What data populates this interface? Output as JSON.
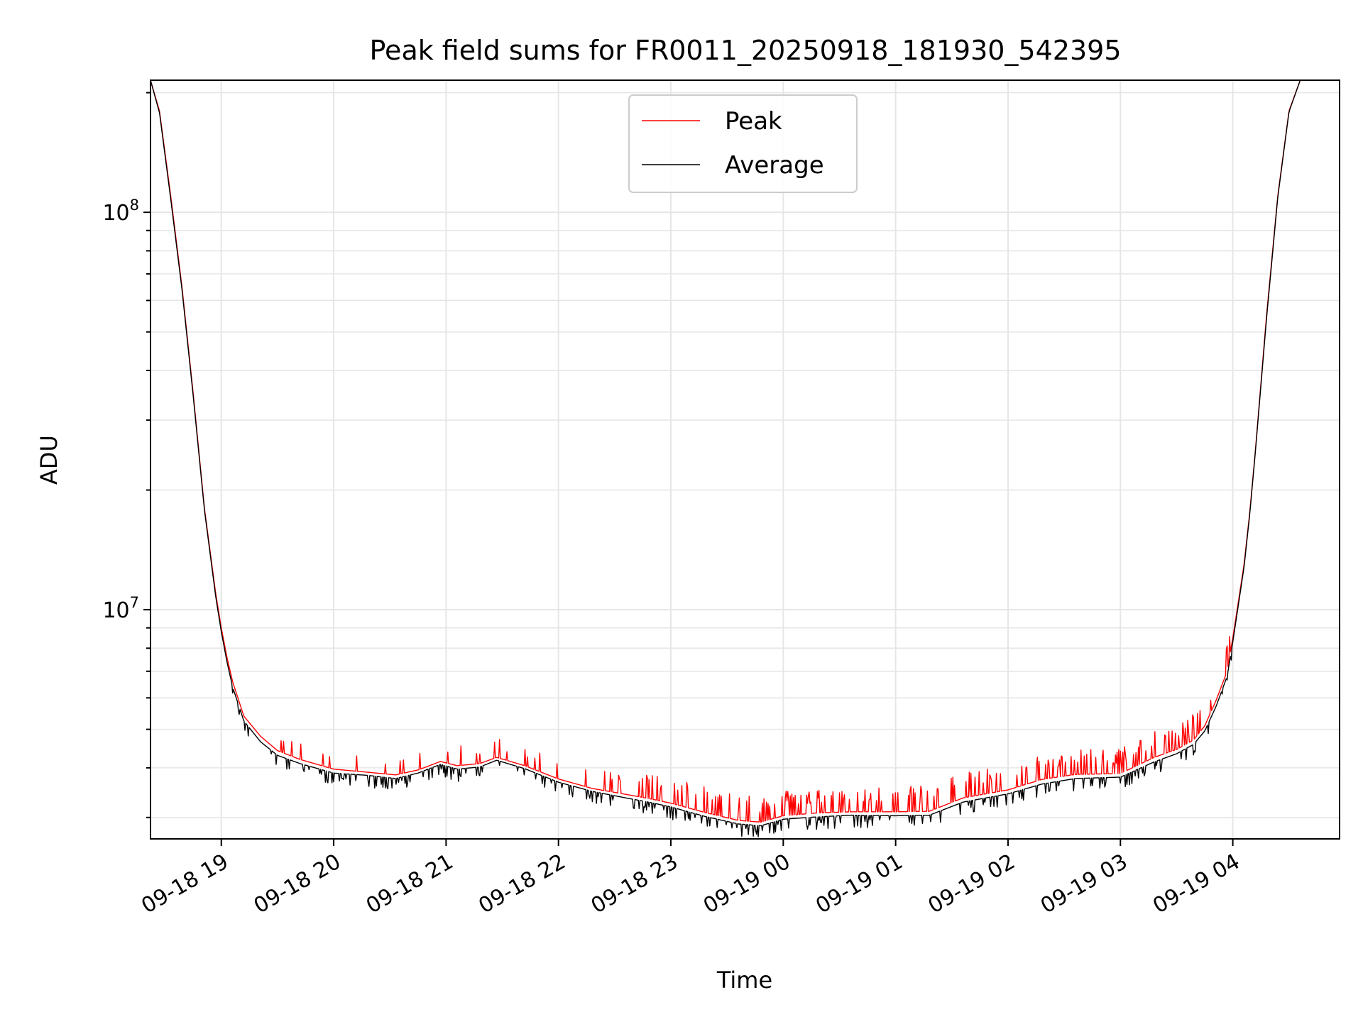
{
  "chart_data": {
    "type": "line",
    "title": "Peak field sums for FR0011_20250918_181930_542395",
    "xlabel": "Time",
    "ylabel": "ADU",
    "yscale": "log",
    "ylim": [
      2650000,
      215000000
    ],
    "xlim_hours": [
      18.37,
      28.95
    ],
    "x_tick_labels": [
      "09-18 19",
      "09-18 20",
      "09-18 21",
      "09-18 22",
      "09-18 23",
      "09-19 00",
      "09-19 01",
      "09-19 02",
      "09-19 03",
      "09-19 04"
    ],
    "x_tick_hours": [
      19,
      20,
      21,
      22,
      23,
      24,
      25,
      26,
      27,
      28
    ],
    "y_major_ticks": [
      {
        "value": 10000000,
        "base": "10",
        "exp": "7"
      },
      {
        "value": 100000000,
        "base": "10",
        "exp": "8"
      }
    ],
    "legend": {
      "placement": "upper-center",
      "entries": [
        "Peak",
        "Average"
      ]
    },
    "colors": {
      "peak": "#ff0000",
      "average": "#000000"
    },
    "series": [
      {
        "name": "Peak",
        "color": "#ff0000",
        "x_hours": [
          18.37,
          18.45,
          18.55,
          18.65,
          18.75,
          18.85,
          18.95,
          19.0,
          19.05,
          19.1,
          19.2,
          19.35,
          19.5,
          19.7,
          20.0,
          20.3,
          20.55,
          20.75,
          20.95,
          21.1,
          21.3,
          21.45,
          21.7,
          22.0,
          22.3,
          22.6,
          22.8,
          23.0,
          23.3,
          23.6,
          23.8,
          24.0,
          24.3,
          24.6,
          25.0,
          25.3,
          25.6,
          26.0,
          26.3,
          26.6,
          27.0,
          27.3,
          27.5,
          27.65,
          27.75,
          27.85,
          27.95,
          28.0,
          28.05,
          28.1,
          28.15,
          28.2,
          28.3,
          28.4,
          28.5,
          28.6
        ],
        "values": [
          215000000,
          180000000,
          110000000,
          65000000,
          35000000,
          18000000,
          11000000,
          9000000,
          7600000,
          6600000,
          5400000,
          4800000,
          4420000,
          4200000,
          3970000,
          3900000,
          3840000,
          3950000,
          4150000,
          4050000,
          4100000,
          4250000,
          4050000,
          3750000,
          3550000,
          3430000,
          3350000,
          3260000,
          3090000,
          2950000,
          2920000,
          3030000,
          3080000,
          3100000,
          3100000,
          3110000,
          3360000,
          3520000,
          3740000,
          3850000,
          3870000,
          4250000,
          4450000,
          4700000,
          5100000,
          5900000,
          7000000,
          8500000,
          10500000,
          13000000,
          17500000,
          25000000,
          55000000,
          110000000,
          180000000,
          215000000
        ]
      },
      {
        "name": "Average",
        "color": "#000000",
        "x_hours": [
          18.37,
          18.45,
          18.55,
          18.65,
          18.75,
          18.85,
          18.95,
          19.0,
          19.05,
          19.1,
          19.2,
          19.35,
          19.5,
          19.7,
          20.0,
          20.3,
          20.55,
          20.75,
          20.95,
          21.1,
          21.3,
          21.45,
          21.7,
          22.0,
          22.3,
          22.6,
          22.8,
          23.0,
          23.3,
          23.6,
          23.8,
          24.0,
          24.3,
          24.6,
          25.0,
          25.3,
          25.6,
          26.0,
          26.3,
          26.6,
          27.0,
          27.3,
          27.5,
          27.65,
          27.75,
          27.85,
          27.95,
          28.0,
          28.05,
          28.1,
          28.15,
          28.2,
          28.3,
          28.4,
          28.5,
          28.6
        ],
        "values": [
          215000000,
          178000000,
          108000000,
          64000000,
          34500000,
          17800000,
          10800000,
          8800000,
          7400000,
          6400000,
          5250000,
          4650000,
          4300000,
          4100000,
          3880000,
          3830000,
          3760000,
          3880000,
          4080000,
          3970000,
          4020000,
          4180000,
          3980000,
          3680000,
          3490000,
          3360000,
          3280000,
          3190000,
          3020000,
          2890000,
          2860000,
          2970000,
          3010000,
          3040000,
          3030000,
          3040000,
          3280000,
          3440000,
          3640000,
          3760000,
          3790000,
          4140000,
          4340000,
          4580000,
          4950000,
          5700000,
          6800000,
          8300000,
          10300000,
          12800000,
          17300000,
          24800000,
          54000000,
          109000000,
          179000000,
          215000000
        ]
      }
    ]
  }
}
